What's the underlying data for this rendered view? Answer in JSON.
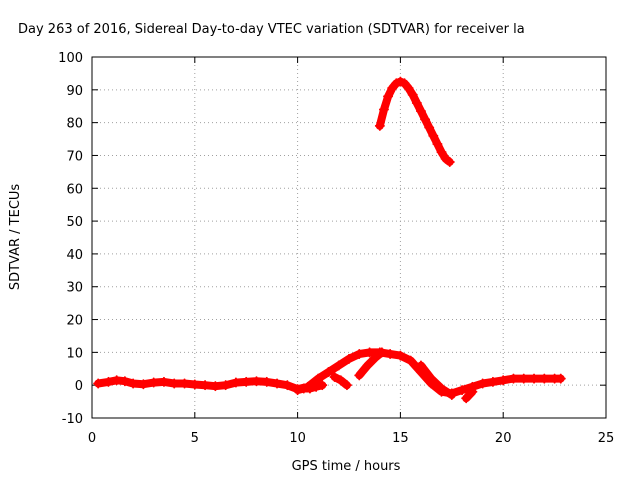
{
  "chart_data": {
    "type": "scatter",
    "title": "Day 263 of 2016, Sidereal Day-to-day VTEC variation (SDTVAR) for receiver la",
    "xlabel": "GPS time / hours",
    "ylabel": "SDTVAR / TECUs",
    "xlim": [
      0,
      25
    ],
    "ylim": [
      -10,
      100
    ],
    "x_ticks": [
      0,
      5,
      10,
      15,
      20,
      25
    ],
    "y_ticks": [
      -10,
      0,
      10,
      20,
      30,
      40,
      50,
      60,
      70,
      80,
      90,
      100
    ],
    "grid": true,
    "marker": "+",
    "color": "#ff0000",
    "series": [
      {
        "x": [
          14.0,
          14.2,
          14.4,
          14.6,
          14.8,
          15.0,
          15.2,
          15.4,
          15.6,
          15.8,
          16.0,
          16.2,
          16.4,
          16.6,
          16.8,
          17.0,
          17.2,
          17.4
        ],
        "y": [
          79,
          84,
          88,
          90.5,
          92,
          92.5,
          92,
          90.5,
          88.5,
          86,
          83.5,
          81,
          78.5,
          76,
          73.5,
          71,
          69,
          68
        ]
      },
      {
        "x": [
          0.3,
          0.8,
          1.2,
          1.6,
          2.0,
          2.5,
          3.0,
          3.5,
          4.0,
          4.5,
          5.0,
          5.5,
          6.0,
          6.5,
          7.0,
          7.5,
          8.0,
          8.5,
          9.0,
          9.5,
          10.0,
          10.5,
          11.0,
          11.5,
          12.0,
          12.5,
          13.0,
          13.5,
          14.0,
          14.5,
          15.0,
          15.5,
          16.0,
          16.5,
          17.0,
          17.5,
          18.0,
          18.5,
          19.0,
          19.5,
          20.0,
          20.5,
          21.0,
          21.5,
          22.0,
          22.5,
          22.8
        ],
        "y": [
          0.5,
          1,
          1.5,
          1.2,
          0.5,
          0.3,
          0.8,
          1,
          0.5,
          0.5,
          0.2,
          0,
          -0.3,
          0,
          0.8,
          1,
          1.2,
          1,
          0.5,
          0,
          -1.2,
          -0.5,
          2,
          4,
          6,
          8,
          9.5,
          10,
          10,
          9.5,
          9,
          7.5,
          4,
          0.5,
          -2,
          -2.5,
          -1.5,
          -0.5,
          0.5,
          1,
          1.5,
          2,
          2,
          2,
          2,
          2,
          2
        ]
      },
      {
        "x": [
          10.0,
          10.3,
          10.6,
          10.9,
          11.2
        ],
        "y": [
          -1.5,
          -1,
          -1,
          -0.5,
          0
        ]
      },
      {
        "x": [
          11.8,
          12.1,
          12.4
        ],
        "y": [
          2.5,
          1.5,
          0
        ]
      },
      {
        "x": [
          13.0,
          13.4,
          13.8,
          14.1
        ],
        "y": [
          3,
          6,
          8.5,
          10
        ]
      },
      {
        "x": [
          16.0,
          16.5,
          17.0,
          17.5
        ],
        "y": [
          6,
          2,
          -1,
          -3
        ]
      },
      {
        "x": [
          18.2,
          18.5
        ],
        "y": [
          -4,
          -2
        ]
      }
    ]
  }
}
